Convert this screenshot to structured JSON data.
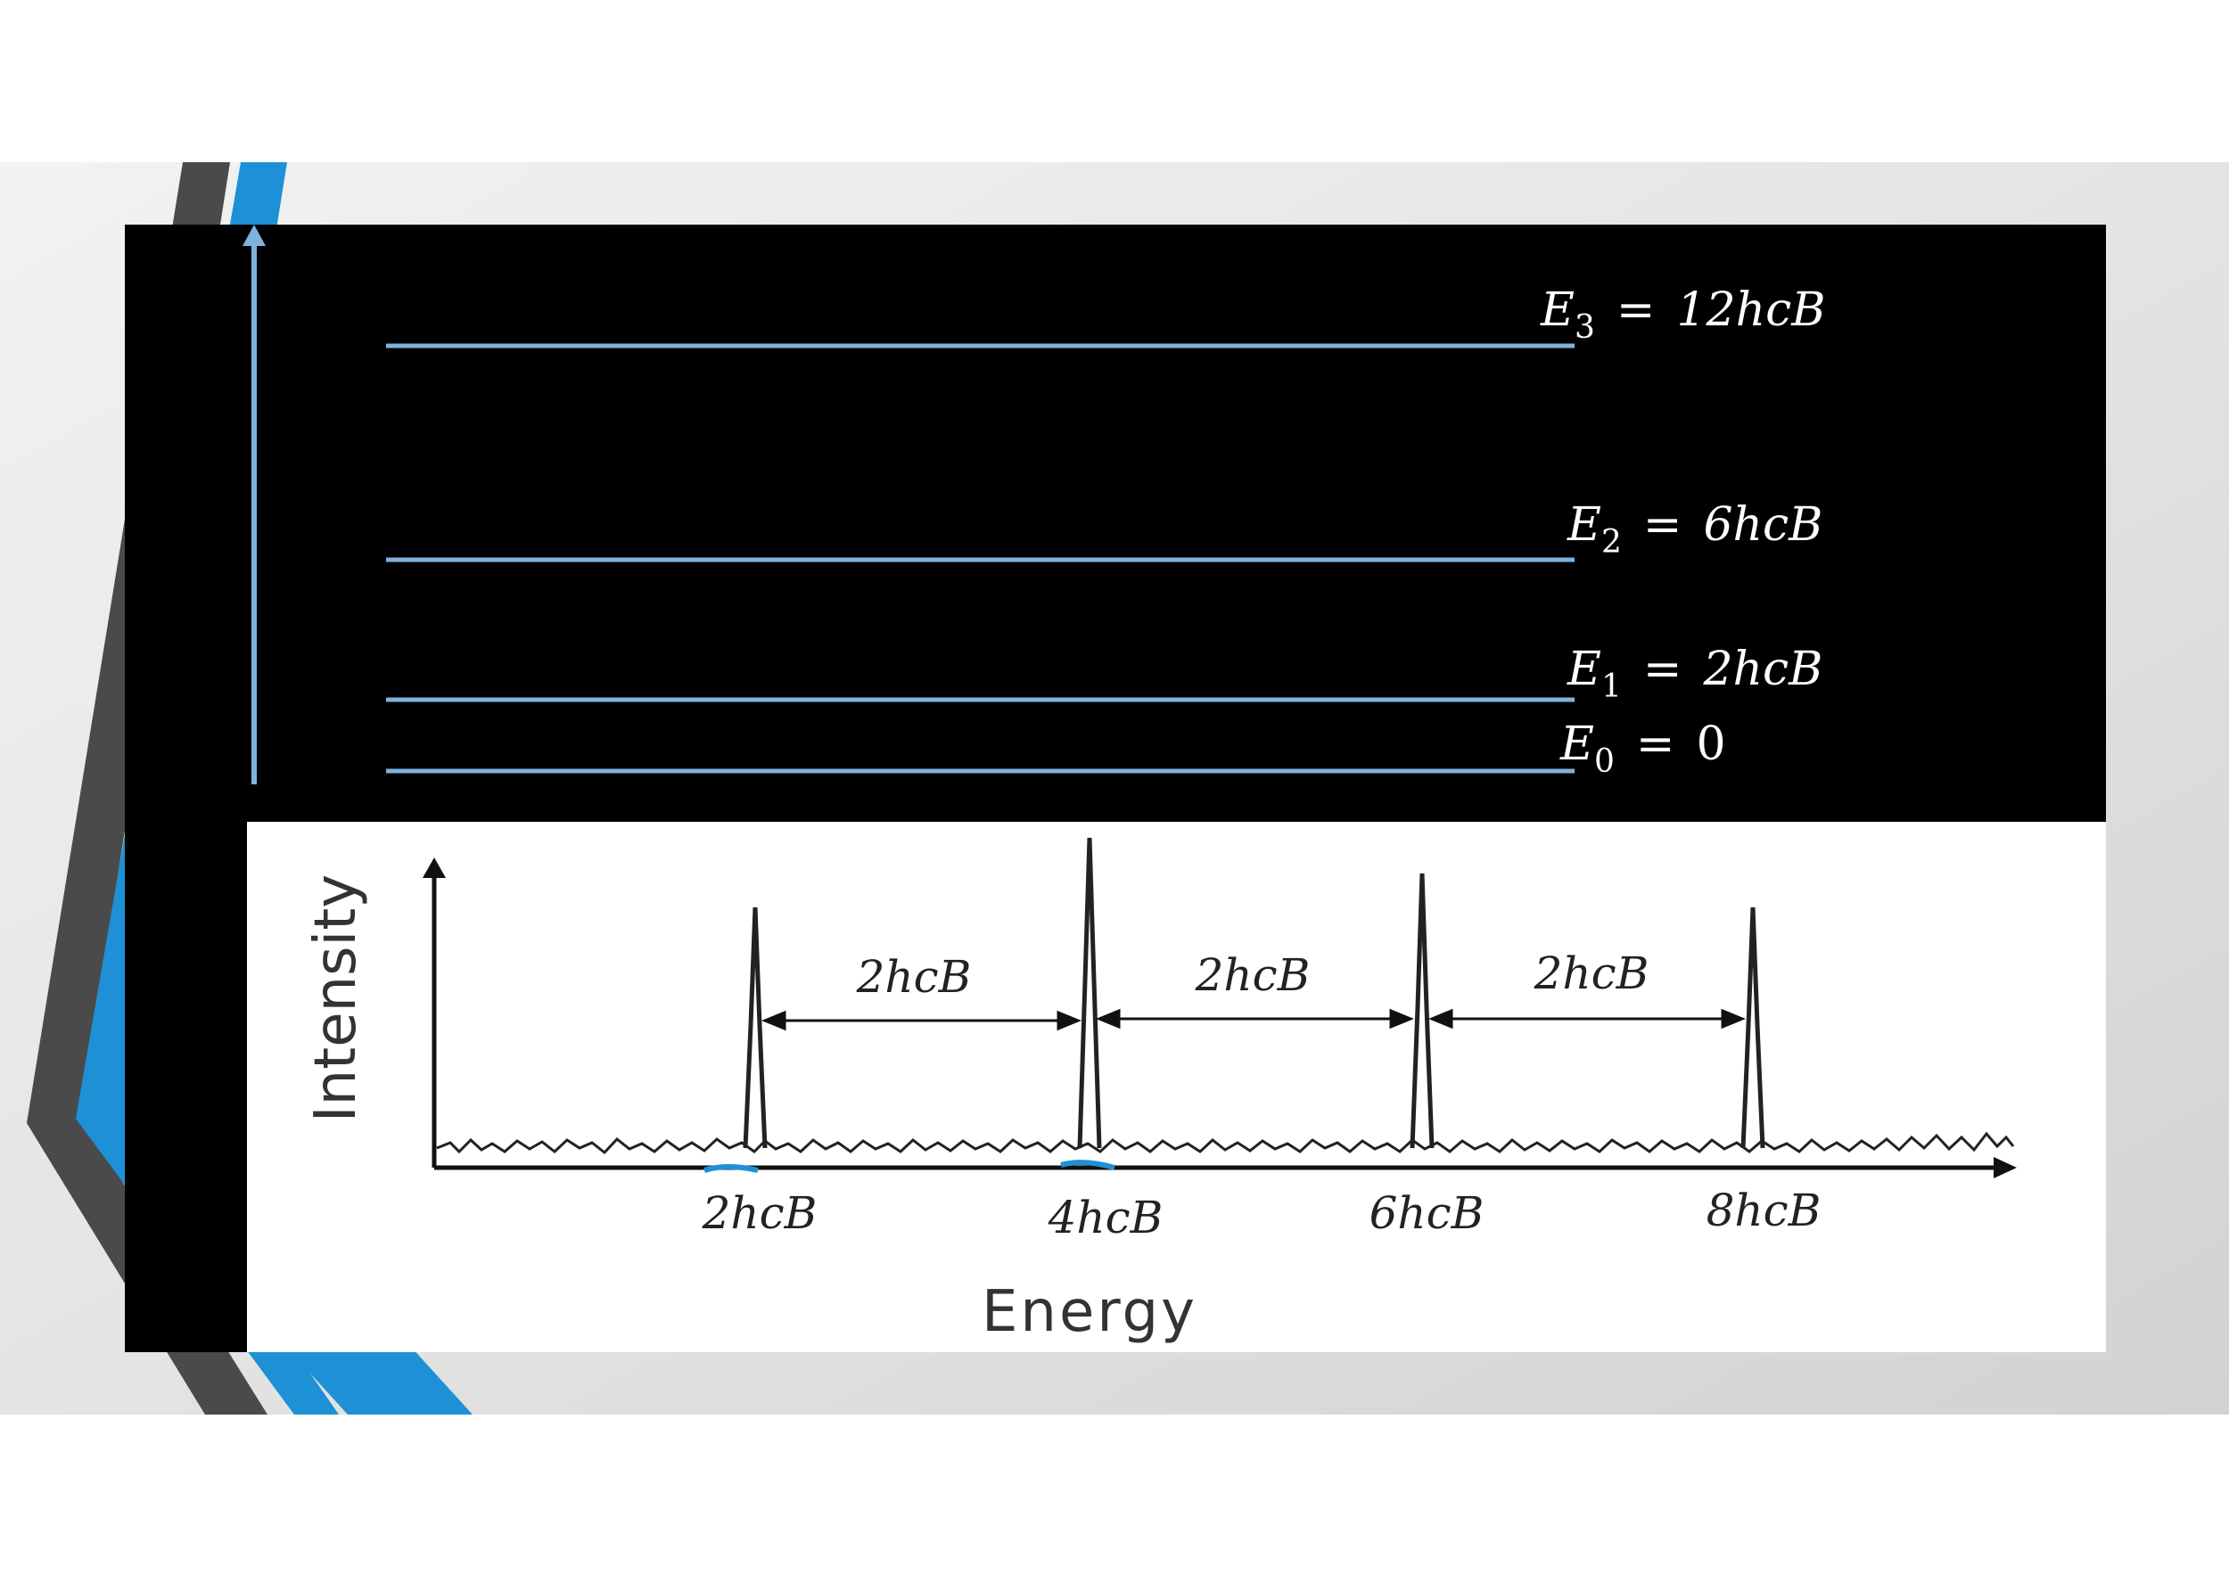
{
  "colors": {
    "slide_bg": "#e6e6e6",
    "diagram_bg": "#000000",
    "level_line": "#7fb2dd",
    "accent_blue": "#1e90d6",
    "accent_gray": "#4a4a4a",
    "spectrum_bg": "#ffffff",
    "ink": "#222222",
    "label_white": "#ffffff"
  },
  "energy_levels": [
    {
      "symbol": "E",
      "subscript": "3",
      "value": "12hcB",
      "relation": "="
    },
    {
      "symbol": "E",
      "subscript": "2",
      "value": "6hcB",
      "relation": "="
    },
    {
      "symbol": "E",
      "subscript": "1",
      "value": "2hcB",
      "relation": "="
    },
    {
      "symbol": "E",
      "subscript": "0",
      "value": "0",
      "relation": "="
    }
  ],
  "spectrum": {
    "y_axis_label": "Intensity",
    "x_axis_label": "Energy",
    "peaks": [
      "2hcB",
      "4hcB",
      "6hcB",
      "8hcB"
    ],
    "spacing_labels": [
      "2hcB",
      "2hcB",
      "2hcB"
    ]
  }
}
